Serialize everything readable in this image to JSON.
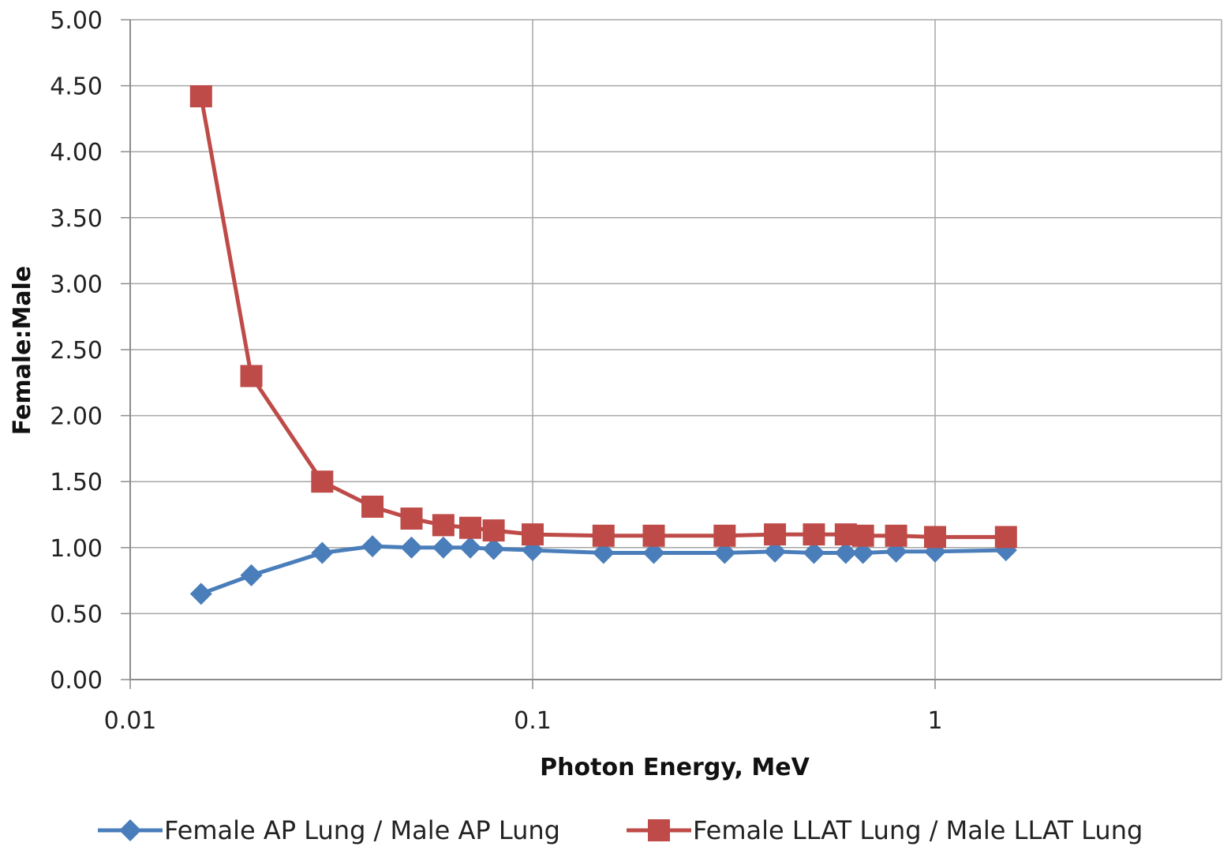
{
  "chart_data": {
    "type": "line",
    "xlabel": "Photon Energy, MeV",
    "ylabel": "Female:Male",
    "xscale": "log",
    "xlim": [
      0.01,
      5
    ],
    "ylim": [
      0,
      5
    ],
    "grid": true,
    "legend_position": "bottom",
    "x_ticks": [
      {
        "value": 0.01,
        "label": "0.01"
      },
      {
        "value": 0.1,
        "label": "0.1"
      },
      {
        "value": 1,
        "label": "1"
      }
    ],
    "y_ticks": [
      {
        "value": 0,
        "label": "0.00"
      },
      {
        "value": 0.5,
        "label": "0.50"
      },
      {
        "value": 1,
        "label": "1.00"
      },
      {
        "value": 1.5,
        "label": "1.50"
      },
      {
        "value": 2,
        "label": "2.00"
      },
      {
        "value": 2.5,
        "label": "2.50"
      },
      {
        "value": 3,
        "label": "3.00"
      },
      {
        "value": 3.5,
        "label": "3.50"
      },
      {
        "value": 4,
        "label": "4.00"
      },
      {
        "value": 4.5,
        "label": "4.50"
      },
      {
        "value": 5,
        "label": "5.00"
      }
    ],
    "series": [
      {
        "name": "Female AP Lung / Male AP Lung",
        "color": "#4a7ebb",
        "marker": "diamond",
        "x": [
          0.015,
          0.02,
          0.03,
          0.04,
          0.05,
          0.06,
          0.07,
          0.08,
          0.1,
          0.15,
          0.2,
          0.3,
          0.4,
          0.5,
          0.6,
          0.662,
          0.8,
          1.0,
          1.5
        ],
        "y": [
          0.65,
          0.79,
          0.96,
          1.01,
          1.0,
          1.0,
          1.0,
          0.99,
          0.98,
          0.96,
          0.96,
          0.96,
          0.97,
          0.96,
          0.96,
          0.96,
          0.97,
          0.97,
          0.98
        ]
      },
      {
        "name": "Female LLAT Lung / Male LLAT Lung",
        "color": "#be4b48",
        "marker": "square",
        "x": [
          0.015,
          0.02,
          0.03,
          0.04,
          0.05,
          0.06,
          0.07,
          0.08,
          0.1,
          0.15,
          0.2,
          0.3,
          0.4,
          0.5,
          0.6,
          0.662,
          0.8,
          1.0,
          1.5
        ],
        "y": [
          4.42,
          2.3,
          1.5,
          1.31,
          1.22,
          1.17,
          1.15,
          1.13,
          1.1,
          1.09,
          1.09,
          1.09,
          1.1,
          1.1,
          1.1,
          1.09,
          1.09,
          1.08,
          1.08
        ]
      }
    ]
  }
}
